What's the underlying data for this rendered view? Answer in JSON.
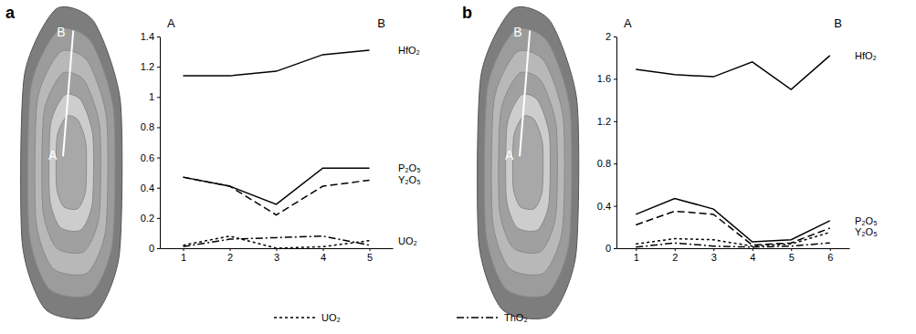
{
  "chart_data": [
    {
      "type": "line",
      "panel": "a",
      "image_labels": [
        "A",
        "B"
      ],
      "corner_labels": [
        "A",
        "B"
      ],
      "x": [
        1,
        2,
        3,
        4,
        5
      ],
      "xlim": [
        0.5,
        5.5
      ],
      "xticks": [
        1,
        2,
        3,
        4,
        5
      ],
      "ylim": [
        0,
        1.4
      ],
      "yticks": [
        0,
        0.2,
        0.4,
        0.6,
        0.8,
        1,
        1.2,
        1.4
      ],
      "series": [
        {
          "name": "HfO₂",
          "color": "#000000",
          "line_style": "solid",
          "values": [
            1.14,
            1.14,
            1.17,
            1.28,
            1.31
          ]
        },
        {
          "name": "P₂O₅",
          "color": "#000000",
          "line_style": "solid",
          "values": [
            0.47,
            0.41,
            0.29,
            0.53,
            0.53
          ]
        },
        {
          "name": "Y₂O₅",
          "color": "#000000",
          "line_style": "dashed",
          "values": [
            0.47,
            0.41,
            0.22,
            0.41,
            0.45
          ]
        },
        {
          "name": "UO₂",
          "color": "#000000",
          "line_style": "short-dashed",
          "values": [
            0.02,
            0.08,
            0.0,
            0.01,
            0.05
          ]
        },
        {
          "name": "ThO₂",
          "color": "#000000",
          "line_style": "dash-dot",
          "values": [
            0.01,
            0.06,
            0.07,
            0.08,
            0.02
          ]
        }
      ],
      "end_labels": [
        "HfO₂",
        "P₂O₅",
        "Y₂O₅",
        "UO₂"
      ]
    },
    {
      "type": "line",
      "panel": "b",
      "image_labels": [
        "A",
        "B"
      ],
      "corner_labels": [
        "A",
        "B"
      ],
      "x": [
        1,
        2,
        3,
        4,
        5,
        6
      ],
      "xlim": [
        0.5,
        6.5
      ],
      "xticks": [
        1,
        2,
        3,
        4,
        5,
        6
      ],
      "ylim": [
        0,
        2
      ],
      "yticks": [
        0,
        0.4,
        0.8,
        1.2,
        1.6,
        2
      ],
      "series": [
        {
          "name": "HfO₂",
          "color": "#000000",
          "line_style": "solid",
          "values": [
            1.69,
            1.64,
            1.62,
            1.76,
            1.5,
            1.82
          ]
        },
        {
          "name": "P₂O₅",
          "color": "#000000",
          "line_style": "solid",
          "values": [
            0.32,
            0.47,
            0.37,
            0.06,
            0.08,
            0.26
          ]
        },
        {
          "name": "Y₂O₅",
          "color": "#000000",
          "line_style": "dashed",
          "values": [
            0.22,
            0.35,
            0.32,
            0.03,
            0.05,
            0.19
          ]
        },
        {
          "name": "UO₂",
          "color": "#000000",
          "line_style": "short-dashed",
          "values": [
            0.04,
            0.09,
            0.08,
            0.02,
            0.04,
            0.15
          ]
        },
        {
          "name": "ThO₂",
          "color": "#000000",
          "line_style": "dash-dot",
          "values": [
            0.01,
            0.05,
            0.02,
            0.01,
            0.02,
            0.05
          ]
        }
      ],
      "end_labels": [
        "HfO₂",
        "P₂O₅",
        "Y₂O₅"
      ]
    }
  ],
  "legend": {
    "entries": [
      {
        "name": "UO₂",
        "line_style": "short-dashed"
      },
      {
        "name": "ThO₂",
        "line_style": "dash-dot"
      }
    ]
  }
}
